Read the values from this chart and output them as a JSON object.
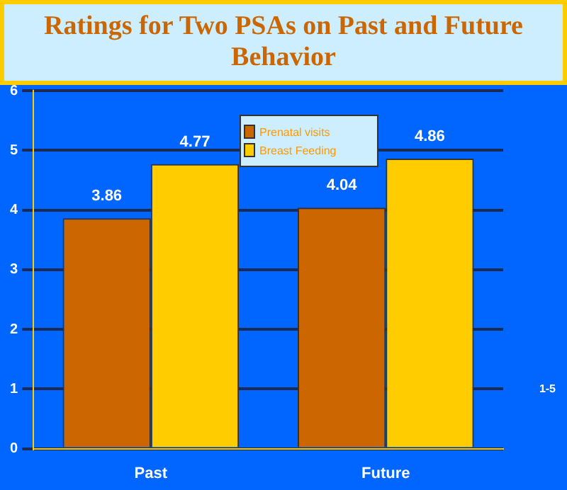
{
  "chart_data": {
    "type": "bar",
    "title": "Ratings for Two PSAs on Past and Future Behavior",
    "categories": [
      "Past",
      "Future"
    ],
    "series": [
      {
        "name": "Prenatal visits",
        "color": "#cc6600",
        "values": [
          3.86,
          4.04
        ]
      },
      {
        "name": "Breast Feeding",
        "color": "#ffcc00",
        "values": [
          4.77,
          4.86
        ]
      }
    ],
    "ylim": [
      0,
      6
    ],
    "yticks": [
      0,
      1,
      2,
      3,
      4,
      5,
      6
    ],
    "grid": "y",
    "legend": "top",
    "data_labels": true,
    "annotations": [
      "1-5"
    ]
  }
}
